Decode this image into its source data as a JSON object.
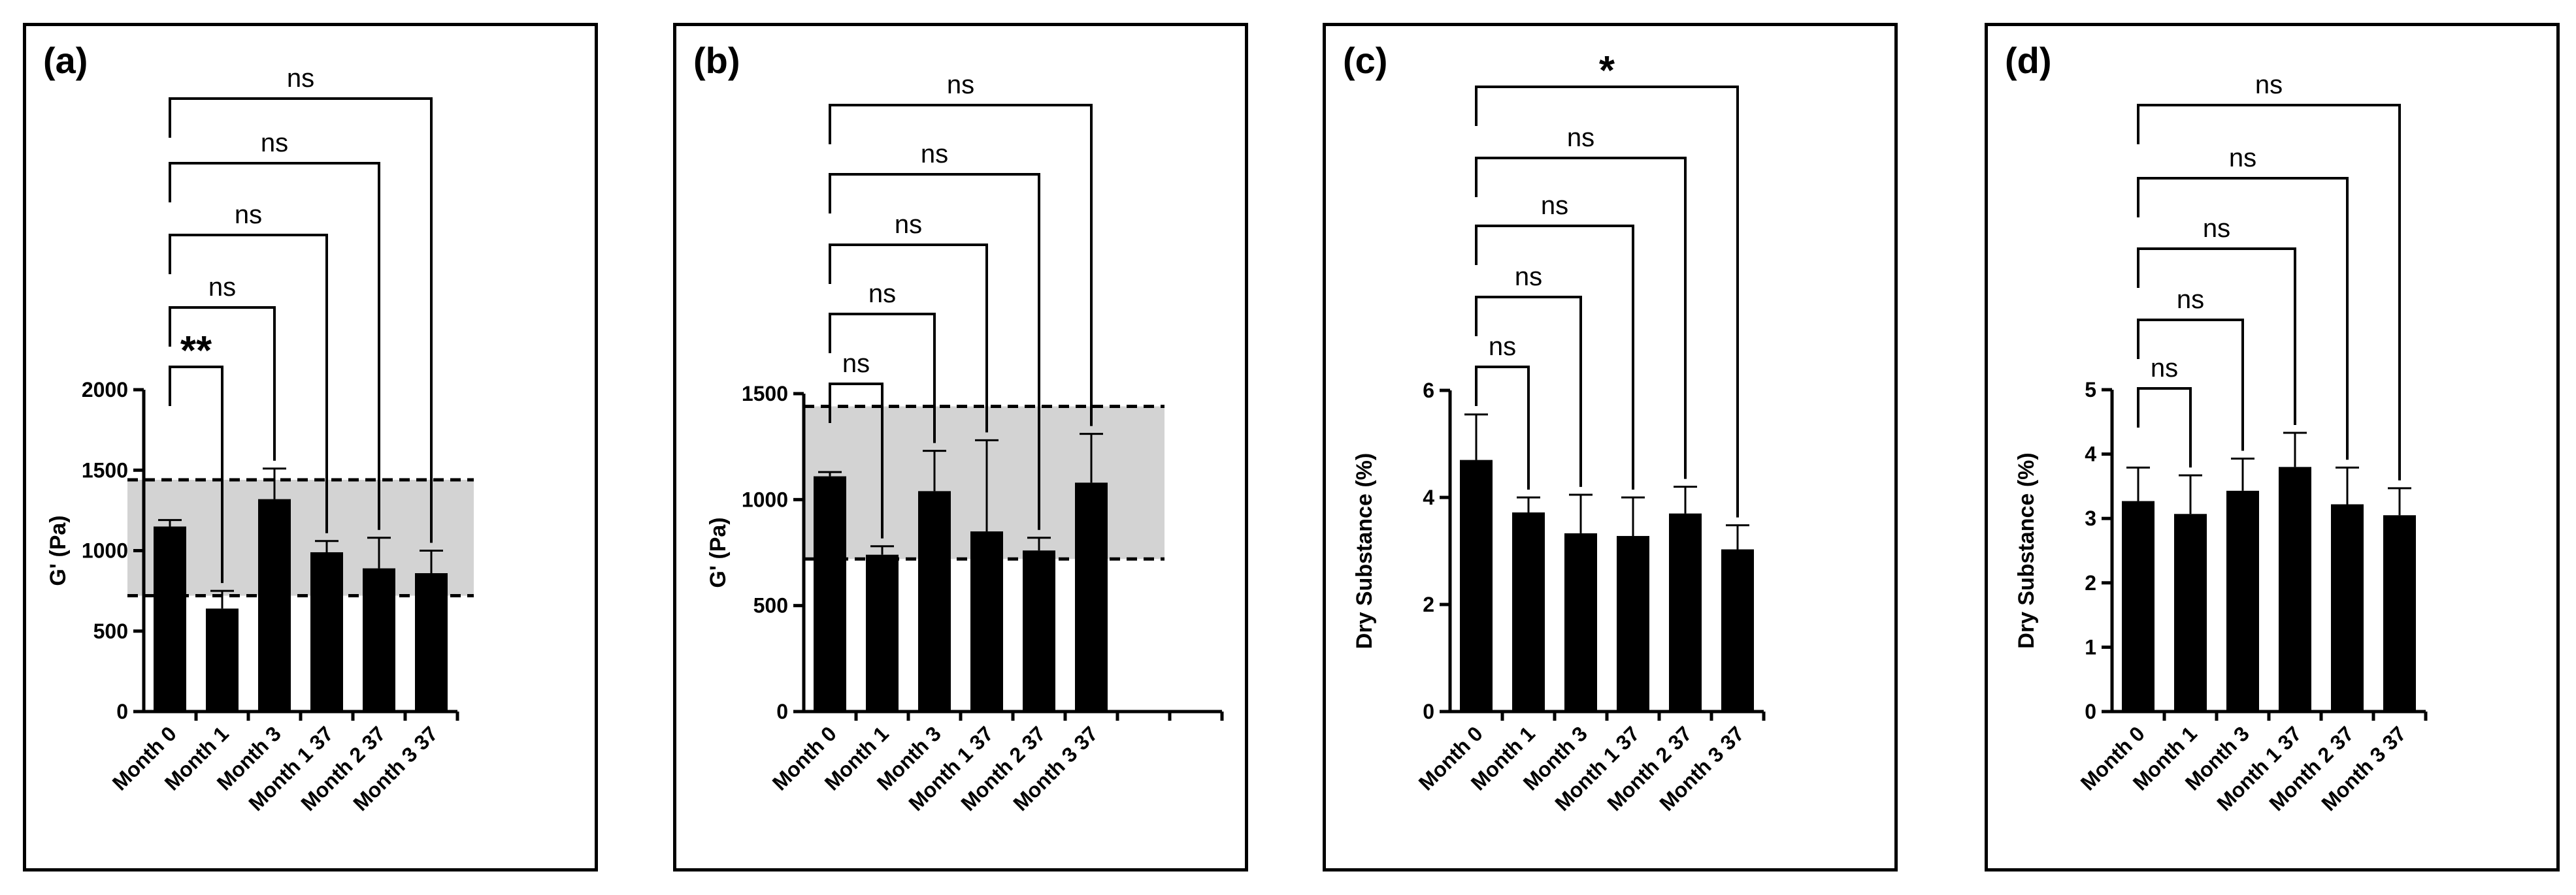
{
  "panels": [
    {
      "label": "(a)",
      "chart_data": {
        "type": "bar",
        "categories": [
          "Month 0",
          "Month 1",
          "Month 3",
          "Month 1 37",
          "Month 2 37",
          "Month 3 37"
        ],
        "values": [
          1150,
          640,
          1320,
          990,
          890,
          860
        ],
        "errors": [
          40,
          110,
          190,
          70,
          190,
          140
        ],
        "ylabel": "G' (Pa)",
        "ylim": [
          0,
          2000
        ],
        "yticks": [
          0,
          500,
          1000,
          1500,
          2000
        ],
        "band": [
          720,
          1440
        ],
        "extra_ticks": 0,
        "comparisons": [
          {
            "to": 1,
            "label": "**"
          },
          {
            "to": 2,
            "label": "ns"
          },
          {
            "to": 3,
            "label": "ns"
          },
          {
            "to": 4,
            "label": "ns"
          },
          {
            "to": 5,
            "label": "ns"
          }
        ]
      }
    },
    {
      "label": "(b)",
      "chart_data": {
        "type": "bar",
        "categories": [
          "Month 0",
          "Month 1",
          "Month 3",
          "Month 1 37",
          "Month 2 37",
          "Month 3 37"
        ],
        "values": [
          1110,
          740,
          1040,
          850,
          760,
          1080
        ],
        "errors": [
          20,
          40,
          190,
          430,
          60,
          230
        ],
        "ylabel": "G' (Pa)",
        "ylim": [
          0,
          1500
        ],
        "yticks": [
          0,
          500,
          1000,
          1500
        ],
        "band": [
          720,
          1440
        ],
        "extra_ticks": 2,
        "comparisons": [
          {
            "to": 1,
            "label": "ns"
          },
          {
            "to": 2,
            "label": "ns"
          },
          {
            "to": 3,
            "label": "ns"
          },
          {
            "to": 4,
            "label": "ns"
          },
          {
            "to": 5,
            "label": "ns"
          }
        ]
      }
    },
    {
      "label": "(c)",
      "chart_data": {
        "type": "bar",
        "categories": [
          "Month 0",
          "Month 1",
          "Month 3",
          "Month 1 37",
          "Month 2 37",
          "Month 3 37"
        ],
        "values": [
          4.7,
          3.72,
          3.33,
          3.28,
          3.7,
          3.03
        ],
        "errors": [
          0.85,
          0.28,
          0.72,
          0.72,
          0.5,
          0.45
        ],
        "ylabel": "Dry Substance (%)",
        "ylim": [
          0,
          6
        ],
        "yticks": [
          0,
          2,
          4,
          6
        ],
        "extra_ticks": 0,
        "comparisons": [
          {
            "to": 1,
            "label": "ns"
          },
          {
            "to": 2,
            "label": "ns"
          },
          {
            "to": 3,
            "label": "ns"
          },
          {
            "to": 4,
            "label": "ns"
          },
          {
            "to": 5,
            "label": "*"
          }
        ]
      }
    },
    {
      "label": "(d)",
      "chart_data": {
        "type": "bar",
        "categories": [
          "Month 0",
          "Month 1",
          "Month 3",
          "Month 1 37",
          "Month 2 37",
          "Month 3 37"
        ],
        "values": [
          3.27,
          3.07,
          3.43,
          3.8,
          3.22,
          3.05
        ],
        "errors": [
          0.52,
          0.6,
          0.5,
          0.53,
          0.57,
          0.42
        ],
        "ylabel": "Dry Substance (%)",
        "ylim": [
          0,
          5
        ],
        "yticks": [
          0,
          1,
          2,
          3,
          4,
          5
        ],
        "extra_ticks": 0,
        "comparisons": [
          {
            "to": 1,
            "label": "ns"
          },
          {
            "to": 2,
            "label": "ns"
          },
          {
            "to": 3,
            "label": "ns"
          },
          {
            "to": 4,
            "label": "ns"
          },
          {
            "to": 5,
            "label": "ns"
          }
        ]
      }
    }
  ]
}
